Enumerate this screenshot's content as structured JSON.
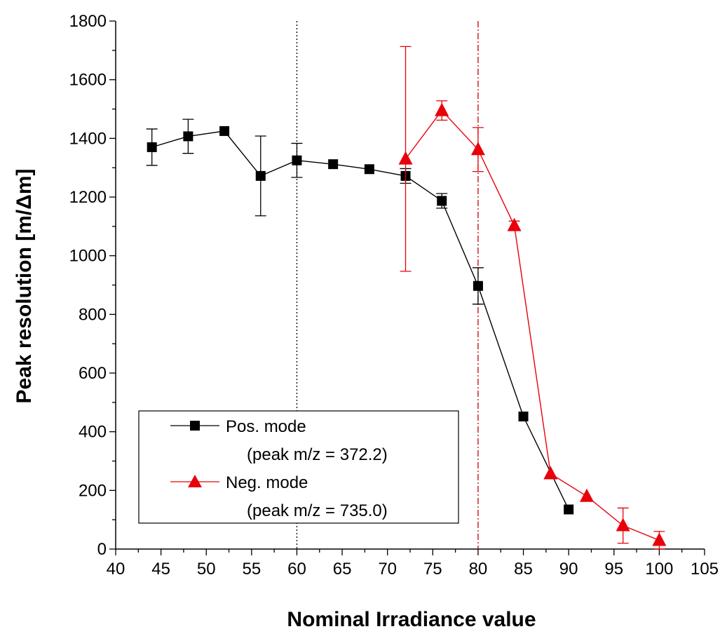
{
  "chart_data": {
    "type": "line",
    "xlabel": "Nominal Irradiance value",
    "ylabel": "Peak resolution [m/Δm]",
    "xlim": [
      40,
      105
    ],
    "ylim": [
      0,
      1800
    ],
    "xticks": [
      40,
      45,
      50,
      55,
      60,
      65,
      70,
      75,
      80,
      85,
      90,
      95,
      100,
      105
    ],
    "yticks": [
      0,
      200,
      400,
      600,
      800,
      1000,
      1200,
      1400,
      1600,
      1800
    ],
    "grid": false,
    "legend_position": "bottom-left",
    "reference_lines": [
      {
        "x": 60,
        "style": "dotted",
        "color": "#000000"
      },
      {
        "x": 80,
        "style": "dash-dot",
        "color": "#cc0000"
      }
    ],
    "series": [
      {
        "name": "Pos. mode",
        "sublabel": "(peak m/z = 372.2)",
        "color": "#000000",
        "marker": "square",
        "x": [
          44,
          48,
          52,
          56,
          60,
          64,
          68,
          72,
          76,
          80,
          85,
          90
        ],
        "values": [
          1370,
          1407,
          1425,
          1272,
          1325,
          1312,
          1295,
          1272,
          1187,
          897,
          452,
          135
        ],
        "errors": [
          62,
          58,
          0,
          136,
          58,
          0,
          0,
          25,
          25,
          62,
          0,
          0
        ]
      },
      {
        "name": "Neg. mode",
        "sublabel": "(peak m/z = 735.0)",
        "color": "#e8000b",
        "marker": "triangle",
        "x": [
          72,
          76,
          80,
          84,
          88,
          92,
          96,
          100
        ],
        "values": [
          1330,
          1495,
          1362,
          1103,
          257,
          180,
          80,
          30
        ],
        "errors": [
          383,
          33,
          75,
          15,
          0,
          0,
          60,
          30
        ]
      }
    ]
  }
}
